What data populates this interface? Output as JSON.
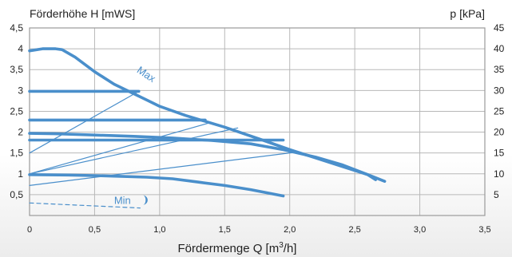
{
  "chart_data": {
    "type": "line",
    "title": "",
    "y_left_label": "Förderhöhe H [mWS]",
    "y_right_label": "p [kPa]",
    "x_label": "Fördermenge Q [m³/h]",
    "x_label_main": "Fördermenge Q [m",
    "x_label_sup": "3",
    "x_label_tail": "/h]",
    "xlim": [
      0,
      3.5
    ],
    "ylim": [
      0,
      4.5
    ],
    "ylim_right": [
      0,
      45
    ],
    "x_ticks": [
      0,
      0.5,
      1.0,
      1.5,
      2.0,
      2.5,
      3.0,
      3.5
    ],
    "x_tick_labels": [
      "0",
      "0,5",
      "1,0",
      "1,5",
      "2,0",
      "2,5",
      "3,0",
      "3,5"
    ],
    "y_left_ticks": [
      0.5,
      1,
      1.5,
      2,
      2.5,
      3,
      3.5,
      4,
      4.5
    ],
    "y_left_tick_labels": [
      "0,5",
      "1",
      "1,5",
      "2",
      "2,5",
      "3",
      "3,5",
      "4",
      "4,5"
    ],
    "y_right_ticks": [
      5,
      10,
      15,
      20,
      25,
      30,
      35,
      40,
      45
    ],
    "y_right_tick_labels": [
      "5",
      "10",
      "15",
      "20",
      "25",
      "30",
      "35",
      "40",
      "45"
    ],
    "grid": true,
    "colors": {
      "curve": "#4a8fcb",
      "grid": "#b8b8b8",
      "axis": "#9a9a9a",
      "text": "#222222"
    },
    "annotations": [
      {
        "text": "Max",
        "x": 0.82,
        "y": 3.45
      },
      {
        "text": "Min",
        "x": 0.65,
        "y": 0.37
      }
    ],
    "series": [
      {
        "style": "thick",
        "x": [
          0,
          0.1,
          0.2,
          0.25,
          0.35,
          0.5,
          0.65,
          0.85,
          1.0,
          1.2,
          1.5,
          1.8,
          2.0,
          2.2,
          2.4,
          2.6,
          2.73
        ],
        "y": [
          3.95,
          4.0,
          4.0,
          3.98,
          3.8,
          3.45,
          3.15,
          2.85,
          2.62,
          2.4,
          2.12,
          1.8,
          1.58,
          1.38,
          1.18,
          0.98,
          0.82
        ]
      },
      {
        "style": "thick",
        "x": [
          0,
          0.2,
          0.5,
          0.8,
          1.1,
          1.4,
          1.7,
          1.95,
          2.2,
          2.4,
          2.6,
          2.66
        ],
        "y": [
          1.97,
          1.96,
          1.93,
          1.9,
          1.86,
          1.8,
          1.72,
          1.58,
          1.4,
          1.22,
          0.98,
          0.86
        ]
      },
      {
        "style": "thick",
        "x": [
          0,
          0.3,
          0.6,
          0.9,
          1.1,
          1.3,
          1.5,
          1.7,
          1.95
        ],
        "y": [
          0.98,
          0.97,
          0.95,
          0.92,
          0.88,
          0.8,
          0.72,
          0.62,
          0.47
        ]
      },
      {
        "style": "thick",
        "x": [
          0,
          0.84
        ],
        "y": [
          2.98,
          2.98
        ]
      },
      {
        "style": "thick",
        "x": [
          0,
          1.35
        ],
        "y": [
          2.29,
          2.29
        ]
      },
      {
        "style": "thick",
        "x": [
          0,
          1.95
        ],
        "y": [
          1.81,
          1.81
        ]
      },
      {
        "style": "thin",
        "x": [
          0,
          0.84
        ],
        "y": [
          1.5,
          2.98
        ]
      },
      {
        "style": "thin",
        "x": [
          0,
          1.38
        ],
        "y": [
          1.0,
          2.22
        ]
      },
      {
        "style": "thin",
        "x": [
          0,
          1.6
        ],
        "y": [
          1.0,
          2.1
        ]
      },
      {
        "style": "thin",
        "x": [
          0,
          2.05
        ],
        "y": [
          0.72,
          1.52
        ]
      },
      {
        "style": "dashed",
        "x": [
          0,
          0.85
        ],
        "y": [
          0.3,
          0.18
        ]
      }
    ]
  }
}
